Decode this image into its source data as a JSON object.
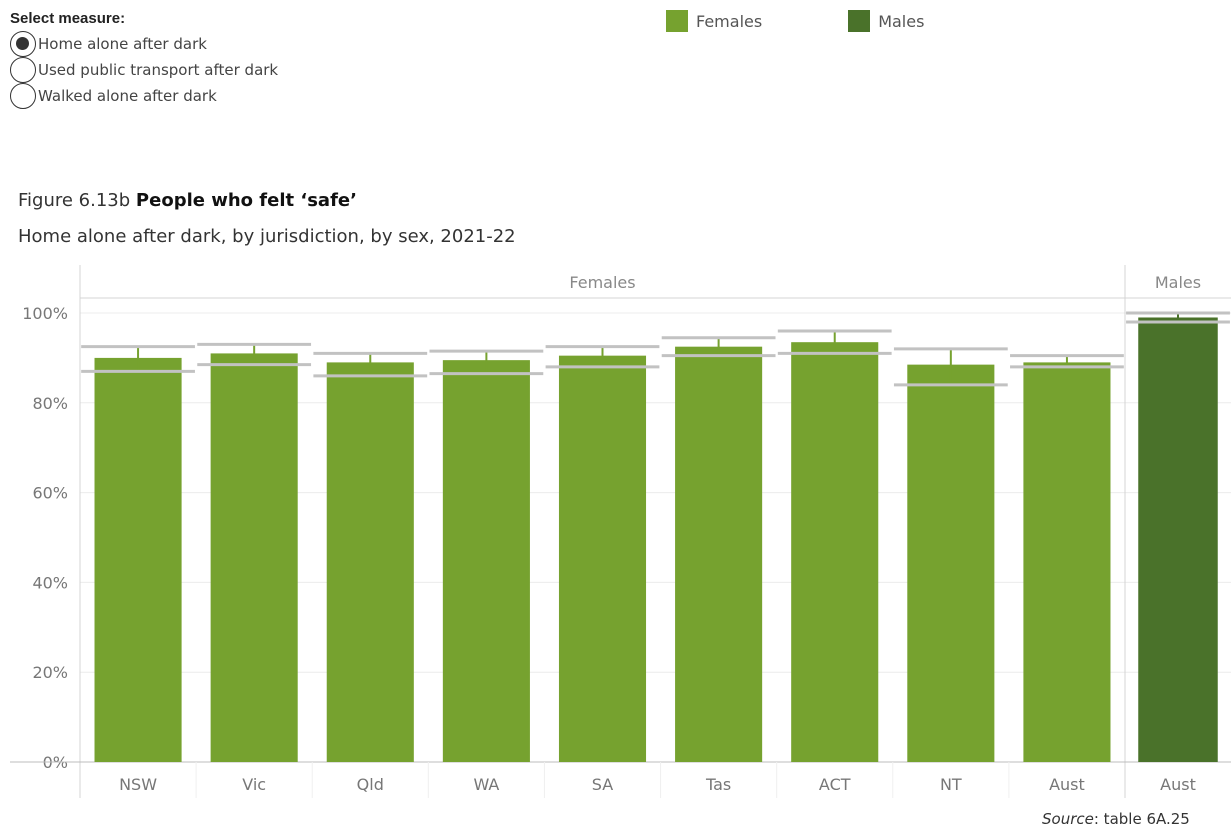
{
  "controls": {
    "heading": "Select measure:",
    "options": [
      {
        "label": "Home alone after dark",
        "selected": true
      },
      {
        "label": "Used public transport after dark",
        "selected": false
      },
      {
        "label": "Walked alone after dark",
        "selected": false
      }
    ]
  },
  "legend": [
    {
      "label": "Females",
      "color": "#76a22f"
    },
    {
      "label": "Males",
      "color": "#4a722a"
    }
  ],
  "figure": {
    "number": "Figure 6.13b",
    "title_bold": "People who felt ‘safe’",
    "subtitle": "Home alone after dark, by jurisdiction, by sex, 2021-22"
  },
  "chart_data": {
    "type": "bar",
    "y_ticks": [
      "0%",
      "20%",
      "40%",
      "60%",
      "80%",
      "100%"
    ],
    "ylim": [
      0,
      100
    ],
    "grid": true,
    "panels": [
      {
        "name": "Females",
        "color": "#76a22f",
        "categories": [
          "NSW",
          "Vic",
          "Qld",
          "WA",
          "SA",
          "Tas",
          "ACT",
          "NT",
          "Aust"
        ],
        "values": [
          90.0,
          91.0,
          89.0,
          89.5,
          90.5,
          92.5,
          93.5,
          88.5,
          89.0
        ],
        "ci_lower": [
          87.0,
          88.5,
          86.0,
          86.5,
          88.0,
          90.5,
          91.0,
          84.0,
          88.0
        ],
        "ci_upper": [
          92.5,
          93.0,
          91.0,
          91.5,
          92.5,
          94.5,
          96.0,
          92.0,
          90.5
        ]
      },
      {
        "name": "Males",
        "color": "#4a722a",
        "categories": [
          "Aust"
        ],
        "values": [
          99.0
        ],
        "ci_lower": [
          98.0
        ],
        "ci_upper": [
          100.0
        ]
      }
    ]
  },
  "source": {
    "label": "Source",
    "text": ": table 6A.25"
  }
}
